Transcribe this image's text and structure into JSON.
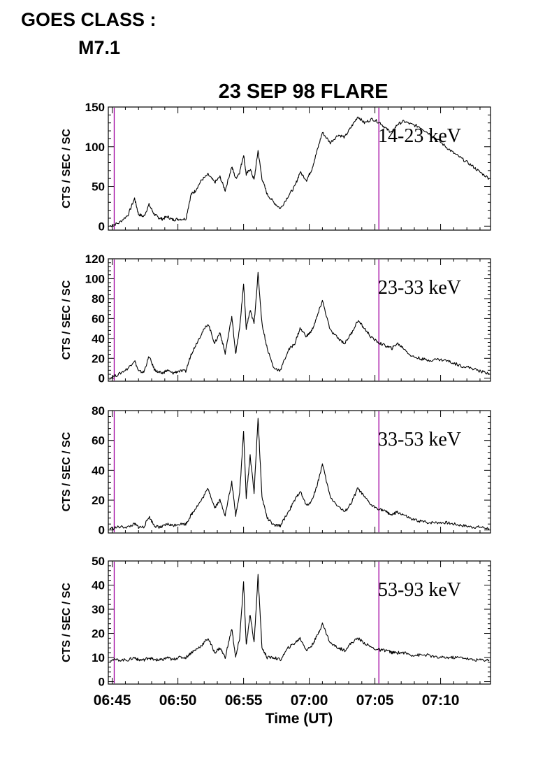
{
  "header": {
    "line1": "GOES CLASS :",
    "line2": "M7.1"
  },
  "chart_data": {
    "type": "line",
    "title": "23 SEP 98 FLARE",
    "xlabel": "Time (UT)",
    "x_unit": "minutes after 06:45 UT",
    "xlim": [
      -0.3,
      28.8
    ],
    "x_ticks": [
      {
        "value": 0,
        "label": "06:45"
      },
      {
        "value": 5,
        "label": "06:50"
      },
      {
        "value": 10,
        "label": "06:55"
      },
      {
        "value": 15,
        "label": "07:00"
      },
      {
        "value": 20,
        "label": "07:05"
      },
      {
        "value": 25,
        "label": "07:10"
      }
    ],
    "vertical_markers": {
      "color": "#a000a0",
      "x": [
        0.15,
        20.3
      ]
    },
    "panels": [
      {
        "band": "14-23 keV",
        "ylabel": "CTS / SEC / SC",
        "ylim": [
          -5,
          150
        ],
        "y_ticks": [
          0,
          50,
          100,
          150
        ],
        "x": [
          -0.2,
          0.5,
          1.2,
          1.7,
          2.0,
          2.4,
          2.8,
          3.2,
          3.5,
          3.8,
          4.2,
          4.6,
          5.0,
          5.6,
          6.0,
          6.3,
          6.8,
          7.3,
          7.8,
          8.2,
          8.6,
          9.1,
          9.4,
          9.7,
          10.0,
          10.2,
          10.5,
          10.8,
          11.1,
          11.4,
          11.8,
          12.3,
          12.8,
          13.4,
          13.9,
          14.3,
          14.8,
          15.2,
          15.6,
          16.0,
          16.6,
          17.2,
          17.7,
          18.2,
          18.7,
          19.2,
          19.8,
          20.4,
          20.9,
          21.3,
          21.7,
          22.2,
          22.8,
          23.4,
          24.0,
          24.7,
          25.4,
          26.0,
          26.7,
          27.4,
          28.0,
          28.7
        ],
        "y": [
          0,
          4,
          14,
          35,
          15,
          12,
          27,
          15,
          11,
          9,
          12,
          8,
          9,
          9,
          40,
          44,
          58,
          65,
          55,
          62,
          45,
          75,
          60,
          68,
          90,
          65,
          72,
          58,
          95,
          60,
          40,
          30,
          22,
          38,
          50,
          68,
          58,
          72,
          95,
          118,
          105,
          115,
          112,
          125,
          138,
          130,
          135,
          130,
          122,
          118,
          128,
          132,
          128,
          125,
          118,
          110,
          100,
          92,
          84,
          76,
          68,
          60
        ]
      },
      {
        "band": "23-33 keV",
        "ylabel": "CTS / SEC / SC",
        "ylim": [
          -3,
          120
        ],
        "y_ticks": [
          0,
          20,
          40,
          60,
          80,
          100,
          120
        ],
        "x": [
          -0.2,
          0.5,
          1.2,
          1.7,
          2.0,
          2.4,
          2.8,
          3.2,
          3.5,
          3.8,
          4.2,
          4.6,
          5.0,
          5.6,
          6.0,
          6.3,
          6.8,
          7.3,
          7.8,
          8.2,
          8.6,
          9.1,
          9.4,
          9.7,
          10.0,
          10.2,
          10.5,
          10.8,
          11.1,
          11.4,
          11.8,
          12.3,
          12.8,
          13.4,
          13.9,
          14.3,
          14.8,
          15.2,
          15.6,
          16.0,
          16.6,
          17.2,
          17.7,
          18.2,
          18.7,
          19.2,
          19.8,
          20.4,
          20.9,
          21.3,
          21.7,
          22.2,
          22.8,
          23.4,
          24.0,
          24.7,
          25.4,
          26.0,
          26.7,
          27.4,
          28.0,
          28.7
        ],
        "y": [
          0,
          4,
          10,
          18,
          7,
          6,
          22,
          9,
          6,
          5,
          8,
          5,
          7,
          7,
          24,
          32,
          45,
          55,
          35,
          46,
          25,
          62,
          25,
          50,
          95,
          50,
          68,
          55,
          105,
          55,
          30,
          10,
          8,
          28,
          35,
          50,
          42,
          48,
          62,
          78,
          48,
          40,
          35,
          45,
          58,
          50,
          40,
          35,
          32,
          30,
          35,
          30,
          22,
          20,
          18,
          19,
          18,
          15,
          12,
          10,
          7,
          5
        ]
      },
      {
        "band": "33-53 keV",
        "ylabel": "CTS / SEC / SC",
        "ylim": [
          -2,
          80
        ],
        "y_ticks": [
          0,
          20,
          40,
          60,
          80
        ],
        "x": [
          -0.2,
          0.5,
          1.2,
          1.7,
          2.0,
          2.4,
          2.8,
          3.2,
          3.5,
          3.8,
          4.2,
          4.6,
          5.0,
          5.6,
          6.0,
          6.3,
          6.8,
          7.3,
          7.8,
          8.2,
          8.6,
          9.1,
          9.4,
          9.7,
          10.0,
          10.2,
          10.5,
          10.8,
          11.1,
          11.4,
          11.8,
          12.3,
          12.8,
          13.4,
          13.9,
          14.3,
          14.8,
          15.2,
          15.6,
          16.0,
          16.6,
          17.2,
          17.7,
          18.2,
          18.7,
          19.2,
          19.8,
          20.4,
          20.9,
          21.3,
          21.7,
          22.2,
          22.8,
          23.4,
          24.0,
          24.7,
          25.4,
          26.0,
          26.7,
          27.4,
          28.0,
          28.7
        ],
        "y": [
          1,
          2,
          2,
          4,
          2,
          2,
          9,
          3,
          2,
          2,
          4,
          3,
          4,
          4,
          10,
          14,
          20,
          28,
          15,
          20,
          10,
          32,
          10,
          25,
          66,
          22,
          50,
          25,
          75,
          22,
          8,
          3,
          3,
          12,
          20,
          26,
          16,
          20,
          30,
          44,
          22,
          16,
          12,
          18,
          28,
          22,
          16,
          14,
          12,
          10,
          12,
          10,
          7,
          6,
          5,
          5,
          5,
          4,
          3,
          2,
          2,
          1
        ]
      },
      {
        "band": "53-93 keV",
        "ylabel": "CTS / SEC / SC",
        "ylim": [
          -1,
          50
        ],
        "y_ticks": [
          0,
          10,
          20,
          30,
          40,
          50
        ],
        "x": [
          -0.2,
          0.5,
          1.2,
          1.7,
          2.0,
          2.4,
          2.8,
          3.2,
          3.5,
          3.8,
          4.2,
          4.6,
          5.0,
          5.6,
          6.0,
          6.3,
          6.8,
          7.3,
          7.8,
          8.2,
          8.6,
          9.1,
          9.4,
          9.7,
          10.0,
          10.2,
          10.5,
          10.8,
          11.1,
          11.4,
          11.8,
          12.3,
          12.8,
          13.4,
          13.9,
          14.3,
          14.8,
          15.2,
          15.6,
          16.0,
          16.6,
          17.2,
          17.7,
          18.2,
          18.7,
          19.2,
          19.8,
          20.4,
          20.9,
          21.3,
          21.7,
          22.2,
          22.8,
          23.4,
          24.0,
          24.7,
          25.4,
          26.0,
          26.7,
          27.4,
          28.0,
          28.7
        ],
        "y": [
          9,
          9,
          9,
          10,
          9,
          9,
          10,
          9,
          9,
          9,
          10,
          9,
          10,
          10,
          12,
          13,
          15,
          18,
          12,
          14,
          10,
          22,
          10,
          18,
          41,
          15,
          28,
          16,
          44,
          14,
          10,
          10,
          9,
          14,
          16,
          18,
          13,
          15,
          19,
          24,
          16,
          14,
          13,
          16,
          18,
          16,
          14,
          13,
          13,
          12,
          12,
          12,
          11,
          11,
          11,
          10,
          10,
          10,
          10,
          9,
          9,
          9
        ]
      }
    ]
  }
}
